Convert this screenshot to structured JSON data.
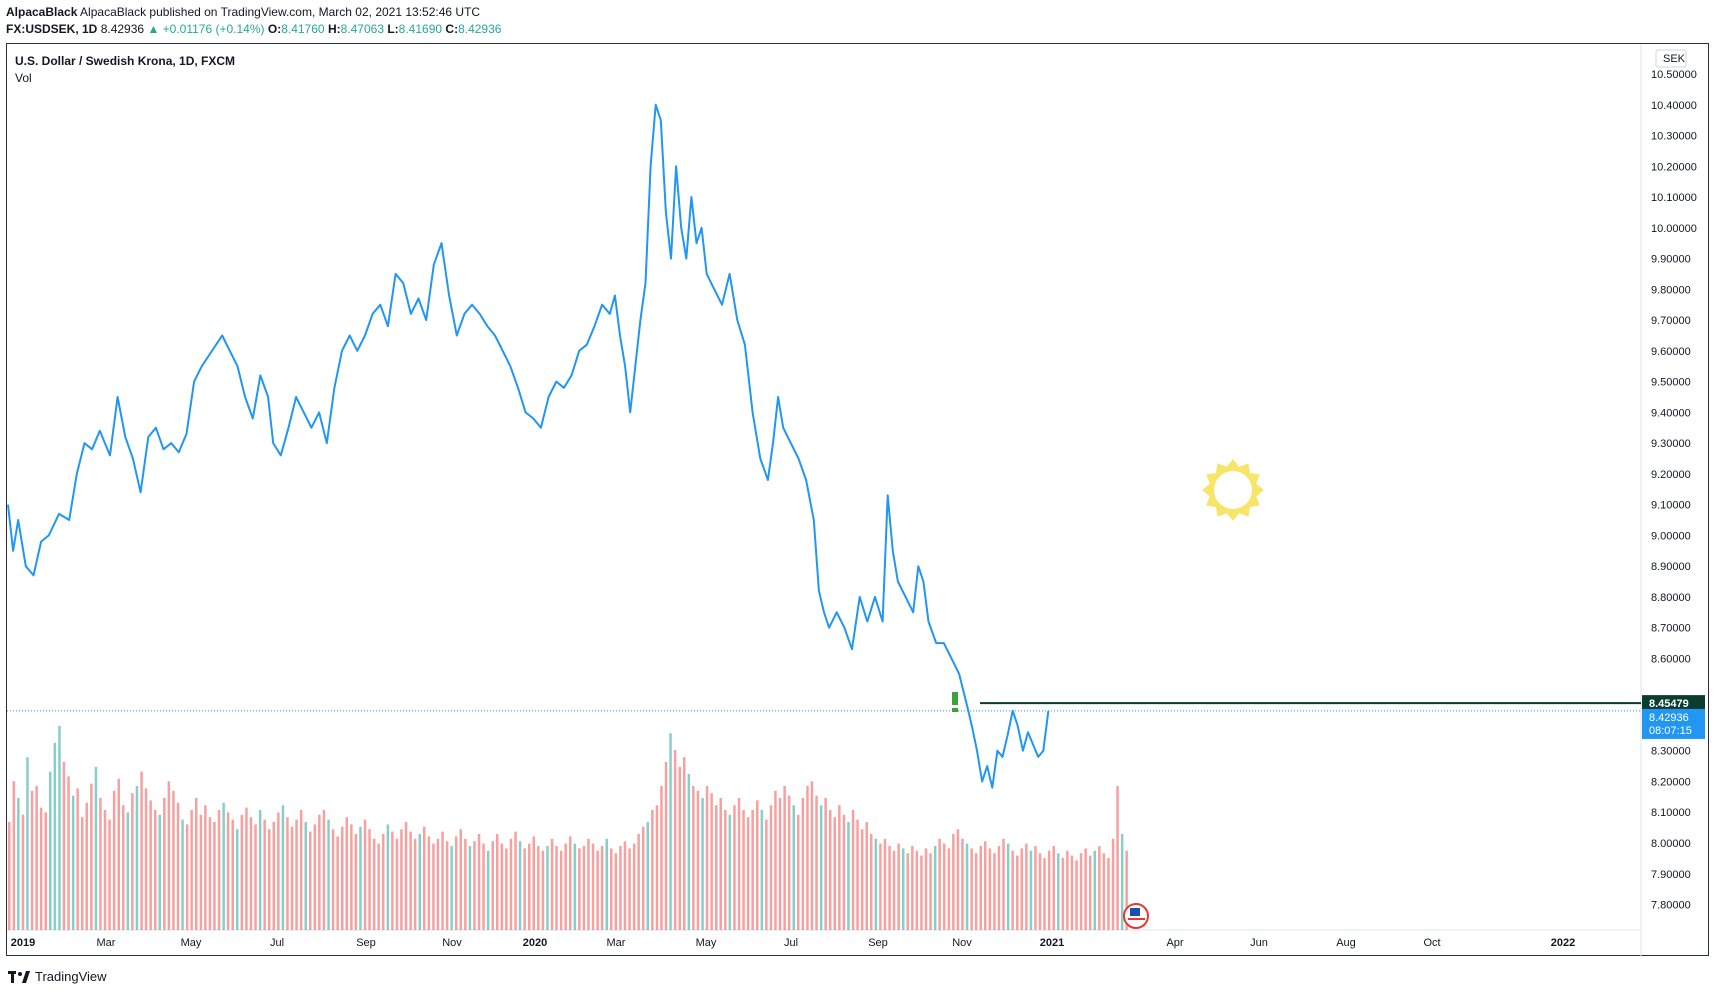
{
  "header": {
    "published": "AlpacaBlack published on TradingView.com, March 02, 2021 13:52:46 UTC",
    "symbol": "FX:USDSEK, 1D",
    "last": "8.42936",
    "change": "▲ +0.01176 (+0.14%)",
    "o_label": "O:",
    "o_value": "8.41760",
    "h_label": "H:",
    "h_value": "8.47063",
    "l_label": "L:",
    "l_value": "8.41690",
    "c_label": "C:",
    "c_value": "8.42936"
  },
  "legend": {
    "title": "U.S. Dollar / Swedish Krona, 1D, FXCM",
    "volume": "Vol"
  },
  "footer": {
    "brand": "TradingView"
  },
  "colors": {
    "line": "#2196f3",
    "vol_up": "#26a69a",
    "vol_down": "#ef5350",
    "hline": "#0a3d2e",
    "sun": "#f7e56a"
  },
  "icons": [
    "exclamation-icon",
    "sun-icon",
    "flag-icon",
    "tradingview-logo-icon"
  ],
  "chart_data": {
    "type": "line",
    "currency_label": "SEK",
    "y_range": [
      7.75,
      10.55
    ],
    "y_ticks": [
      "10.50000",
      "10.40000",
      "10.30000",
      "10.20000",
      "10.10000",
      "10.00000",
      "9.90000",
      "9.80000",
      "9.70000",
      "9.60000",
      "9.50000",
      "9.40000",
      "9.30000",
      "9.20000",
      "9.10000",
      "9.00000",
      "8.90000",
      "8.80000",
      "8.70000",
      "8.60000",
      "8.30000",
      "8.20000",
      "8.10000",
      "8.00000",
      "7.90000",
      "7.80000"
    ],
    "x_ticks": [
      "2019",
      "Mar",
      "May",
      "Jul",
      "Sep",
      "Nov",
      "2020",
      "Mar",
      "May",
      "Jul",
      "Sep",
      "Nov",
      "2021",
      "Apr",
      "Jun",
      "Aug",
      "Oct",
      "2022"
    ],
    "horizontal_line": {
      "value": 8.45479,
      "label": "8.45479"
    },
    "last_price": {
      "value": 8.42936,
      "label": "8.42936",
      "countdown": "08:07:15"
    },
    "series": [
      {
        "values": [
          [
            0,
            9.1
          ],
          [
            2,
            8.95
          ],
          [
            4,
            9.05
          ],
          [
            7,
            8.9
          ],
          [
            10,
            8.87
          ],
          [
            13,
            8.98
          ],
          [
            16,
            9.0
          ],
          [
            20,
            9.07
          ],
          [
            24,
            9.05
          ],
          [
            27,
            9.2
          ],
          [
            30,
            9.3
          ],
          [
            33,
            9.28
          ],
          [
            36,
            9.34
          ],
          [
            38,
            9.3
          ],
          [
            40,
            9.26
          ],
          [
            43,
            9.45
          ],
          [
            46,
            9.32
          ],
          [
            49,
            9.25
          ],
          [
            52,
            9.14
          ],
          [
            55,
            9.32
          ],
          [
            58,
            9.35
          ],
          [
            61,
            9.28
          ],
          [
            64,
            9.3
          ],
          [
            67,
            9.27
          ],
          [
            70,
            9.33
          ],
          [
            73,
            9.5
          ],
          [
            76,
            9.55
          ],
          [
            80,
            9.6
          ],
          [
            84,
            9.65
          ],
          [
            87,
            9.6
          ],
          [
            90,
            9.55
          ],
          [
            93,
            9.45
          ],
          [
            96,
            9.38
          ],
          [
            99,
            9.52
          ],
          [
            102,
            9.45
          ],
          [
            104,
            9.3
          ],
          [
            107,
            9.26
          ],
          [
            110,
            9.35
          ],
          [
            113,
            9.45
          ],
          [
            116,
            9.4
          ],
          [
            119,
            9.35
          ],
          [
            122,
            9.4
          ],
          [
            125,
            9.3
          ],
          [
            128,
            9.48
          ],
          [
            131,
            9.6
          ],
          [
            134,
            9.65
          ],
          [
            137,
            9.6
          ],
          [
            140,
            9.65
          ],
          [
            143,
            9.72
          ],
          [
            146,
            9.75
          ],
          [
            149,
            9.68
          ],
          [
            152,
            9.85
          ],
          [
            155,
            9.82
          ],
          [
            158,
            9.72
          ],
          [
            161,
            9.77
          ],
          [
            164,
            9.7
          ],
          [
            167,
            9.88
          ],
          [
            170,
            9.95
          ],
          [
            173,
            9.78
          ],
          [
            176,
            9.65
          ],
          [
            179,
            9.72
          ],
          [
            182,
            9.75
          ],
          [
            185,
            9.72
          ],
          [
            188,
            9.68
          ],
          [
            191,
            9.65
          ],
          [
            194,
            9.6
          ],
          [
            197,
            9.55
          ],
          [
            200,
            9.48
          ],
          [
            203,
            9.4
          ],
          [
            206,
            9.38
          ],
          [
            209,
            9.35
          ],
          [
            212,
            9.45
          ],
          [
            215,
            9.5
          ],
          [
            218,
            9.48
          ],
          [
            221,
            9.52
          ],
          [
            224,
            9.6
          ],
          [
            227,
            9.62
          ],
          [
            230,
            9.68
          ],
          [
            233,
            9.75
          ],
          [
            236,
            9.72
          ],
          [
            238,
            9.78
          ],
          [
            240,
            9.65
          ],
          [
            242,
            9.55
          ],
          [
            244,
            9.4
          ],
          [
            246,
            9.55
          ],
          [
            248,
            9.7
          ],
          [
            250,
            9.82
          ],
          [
            252,
            10.2
          ],
          [
            254,
            10.4
          ],
          [
            256,
            10.35
          ],
          [
            258,
            10.05
          ],
          [
            260,
            9.9
          ],
          [
            262,
            10.2
          ],
          [
            264,
            10.0
          ],
          [
            266,
            9.9
          ],
          [
            268,
            10.1
          ],
          [
            270,
            9.95
          ],
          [
            272,
            10.0
          ],
          [
            274,
            9.85
          ],
          [
            277,
            9.8
          ],
          [
            280,
            9.75
          ],
          [
            283,
            9.85
          ],
          [
            286,
            9.7
          ],
          [
            289,
            9.62
          ],
          [
            292,
            9.4
          ],
          [
            295,
            9.25
          ],
          [
            298,
            9.18
          ],
          [
            300,
            9.3
          ],
          [
            302,
            9.45
          ],
          [
            304,
            9.35
          ],
          [
            307,
            9.3
          ],
          [
            310,
            9.25
          ],
          [
            313,
            9.18
          ],
          [
            316,
            9.05
          ],
          [
            318,
            8.82
          ],
          [
            320,
            8.75
          ],
          [
            322,
            8.7
          ],
          [
            325,
            8.75
          ],
          [
            328,
            8.7
          ],
          [
            331,
            8.63
          ],
          [
            334,
            8.8
          ],
          [
            337,
            8.72
          ],
          [
            340,
            8.8
          ],
          [
            343,
            8.72
          ],
          [
            345,
            9.13
          ],
          [
            347,
            8.95
          ],
          [
            349,
            8.85
          ],
          [
            352,
            8.8
          ],
          [
            355,
            8.75
          ],
          [
            357,
            8.9
          ],
          [
            359,
            8.85
          ],
          [
            361,
            8.72
          ],
          [
            364,
            8.65
          ],
          [
            367,
            8.65
          ],
          [
            370,
            8.6
          ],
          [
            373,
            8.55
          ],
          [
            376,
            8.45
          ],
          [
            378,
            8.38
          ],
          [
            380,
            8.3
          ],
          [
            382,
            8.2
          ],
          [
            384,
            8.25
          ],
          [
            386,
            8.18
          ],
          [
            388,
            8.3
          ],
          [
            390,
            8.28
          ],
          [
            392,
            8.35
          ],
          [
            394,
            8.43
          ],
          [
            396,
            8.38
          ],
          [
            398,
            8.3
          ],
          [
            400,
            8.36
          ],
          [
            402,
            8.32
          ],
          [
            404,
            8.28
          ],
          [
            406,
            8.3
          ],
          [
            408,
            8.43
          ]
        ]
      }
    ],
    "volume_bars": [
      0.45,
      0.62,
      0.55,
      0.48,
      0.72,
      0.58,
      0.6,
      0.51,
      0.49,
      0.66,
      0.78,
      0.85,
      0.7,
      0.64,
      0.56,
      0.59,
      0.47,
      0.53,
      0.61,
      0.68,
      0.55,
      0.5,
      0.46,
      0.58,
      0.63,
      0.52,
      0.49,
      0.57,
      0.6,
      0.66,
      0.59,
      0.54,
      0.5,
      0.48,
      0.55,
      0.62,
      0.58,
      0.53,
      0.46,
      0.44,
      0.5,
      0.55,
      0.48,
      0.52,
      0.47,
      0.45,
      0.5,
      0.53,
      0.49,
      0.46,
      0.42,
      0.48,
      0.51,
      0.47,
      0.44,
      0.5,
      0.46,
      0.42,
      0.45,
      0.49,
      0.52,
      0.47,
      0.43,
      0.46,
      0.5,
      0.45,
      0.41,
      0.44,
      0.48,
      0.5,
      0.46,
      0.42,
      0.39,
      0.43,
      0.47,
      0.44,
      0.4,
      0.43,
      0.46,
      0.42,
      0.38,
      0.36,
      0.4,
      0.44,
      0.41,
      0.38,
      0.42,
      0.45,
      0.41,
      0.38,
      0.4,
      0.43,
      0.39,
      0.36,
      0.38,
      0.41,
      0.37,
      0.35,
      0.39,
      0.42,
      0.38,
      0.35,
      0.37,
      0.4,
      0.36,
      0.33,
      0.37,
      0.4,
      0.36,
      0.34,
      0.38,
      0.41,
      0.37,
      0.34,
      0.36,
      0.39,
      0.35,
      0.33,
      0.35,
      0.38,
      0.35,
      0.33,
      0.36,
      0.39,
      0.36,
      0.34,
      0.35,
      0.38,
      0.36,
      0.33,
      0.35,
      0.38,
      0.34,
      0.32,
      0.35,
      0.37,
      0.34,
      0.36,
      0.4,
      0.43,
      0.45,
      0.5,
      0.52,
      0.6,
      0.7,
      0.82,
      0.75,
      0.68,
      0.72,
      0.65,
      0.6,
      0.58,
      0.55,
      0.6,
      0.57,
      0.52,
      0.55,
      0.5,
      0.48,
      0.52,
      0.55,
      0.5,
      0.47,
      0.5,
      0.54,
      0.5,
      0.46,
      0.52,
      0.58,
      0.55,
      0.6,
      0.56,
      0.52,
      0.48,
      0.55,
      0.6,
      0.62,
      0.56,
      0.52,
      0.55,
      0.5,
      0.47,
      0.52,
      0.48,
      0.45,
      0.5,
      0.46,
      0.42,
      0.45,
      0.4,
      0.38,
      0.36,
      0.38,
      0.35,
      0.33,
      0.36,
      0.34,
      0.32,
      0.35,
      0.33,
      0.31,
      0.34,
      0.32,
      0.35,
      0.38,
      0.36,
      0.34,
      0.4,
      0.42,
      0.38,
      0.36,
      0.34,
      0.32,
      0.35,
      0.37,
      0.34,
      0.32,
      0.35,
      0.38,
      0.36,
      0.33,
      0.31,
      0.34,
      0.36,
      0.33,
      0.35,
      0.32,
      0.3,
      0.33,
      0.35,
      0.32,
      0.3,
      0.33,
      0.31,
      0.29,
      0.32,
      0.34,
      0.31,
      0.33,
      0.35,
      0.32,
      0.3,
      0.38,
      0.6,
      0.4,
      0.33
    ]
  }
}
